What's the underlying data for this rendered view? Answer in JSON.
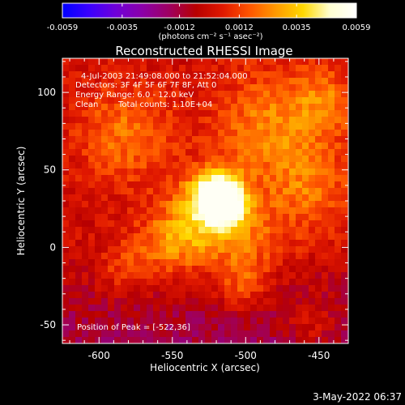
{
  "colorbar": {
    "ticks": [
      "-0.0059",
      "-0.0035",
      "-0.0012",
      "0.0012",
      "0.0035",
      "0.0059"
    ],
    "tick_values": [
      -0.0059,
      -0.0035,
      -0.0012,
      0.0012,
      0.0035,
      0.0059
    ],
    "range": [
      -0.0059,
      0.0059
    ],
    "units": "(photons cm⁻² s⁻¹ asec⁻²)",
    "palette": [
      "#0000ff",
      "#3a00ff",
      "#6f00d8",
      "#8b00a8",
      "#9e0060",
      "#b80000",
      "#e01800",
      "#ff5500",
      "#ff9a00",
      "#ffd800",
      "#ffffd0",
      "#ffffff"
    ]
  },
  "title": "Reconstructed RHESSI Image",
  "info": {
    "time_range": "4-Jul-2003 21:49:08.000 to 21:52:04.000",
    "detectors": "Detectors: 3F 4F 5F 6F 7F 8F, Att 0",
    "energy": "Energy Range: 6.0 - 12.0 keV",
    "method": "Clean",
    "counts": "Total counts: 1.10E+04",
    "peak": "Position of Peak = [-522,36]"
  },
  "axes": {
    "xlabel": "Heliocentric X (arcsec)",
    "ylabel": "Heliocentric Y (arcsec)",
    "xlim": [
      -625,
      -430
    ],
    "ylim": [
      -62,
      122
    ],
    "xticks": [
      "-600",
      "-550",
      "-500",
      "-450"
    ],
    "xtick_values": [
      -600,
      -550,
      -500,
      -450
    ],
    "yticks": [
      "-50",
      "0",
      "50",
      "100"
    ],
    "ytick_values": [
      -50,
      0,
      50,
      100
    ]
  },
  "peak": {
    "x": -522,
    "y": 36
  },
  "timestamp": "3-May-2022 06:37"
}
